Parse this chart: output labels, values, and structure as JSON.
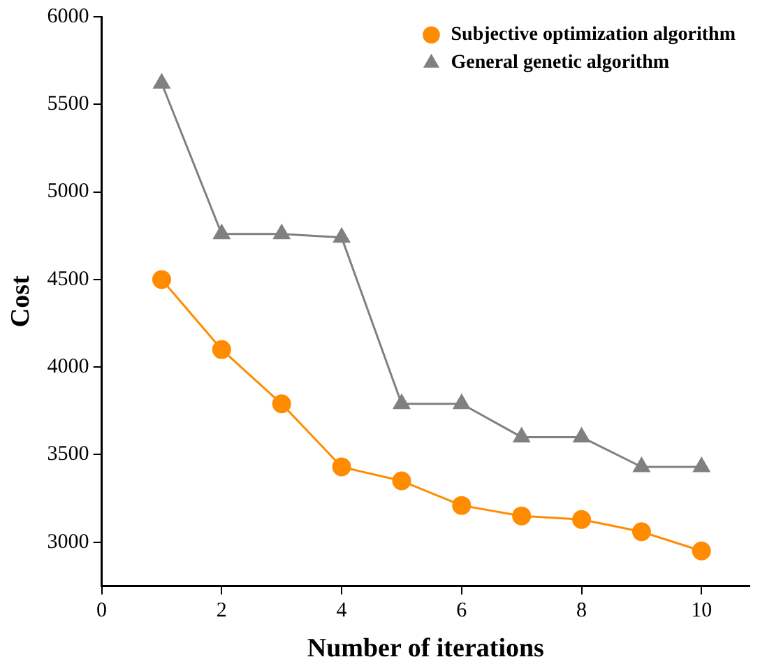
{
  "chart_data": {
    "type": "line",
    "xlabel": "Number of iterations",
    "ylabel": "Cost",
    "x": [
      1,
      2,
      3,
      4,
      5,
      6,
      7,
      8,
      9,
      10
    ],
    "series": [
      {
        "name": "Subjective optimization algorithm",
        "color": "#ff8c00",
        "marker": "circle",
        "values": [
          4500,
          4100,
          3790,
          3430,
          3350,
          3210,
          3150,
          3130,
          3060,
          2950
        ]
      },
      {
        "name": "General genetic algorithm",
        "color": "#808080",
        "marker": "triangle",
        "values": [
          5620,
          4760,
          4760,
          4740,
          3790,
          3790,
          3600,
          3600,
          3430,
          3430
        ]
      }
    ],
    "xlim": [
      0,
      10.8
    ],
    "xticks": [
      0,
      2,
      4,
      6,
      8,
      10
    ],
    "ylim": [
      2750,
      6000
    ],
    "yticks": [
      3000,
      3500,
      4000,
      4500,
      5000,
      5500,
      6000
    ],
    "grid": false,
    "legend": "top right",
    "line_style": "solid"
  }
}
